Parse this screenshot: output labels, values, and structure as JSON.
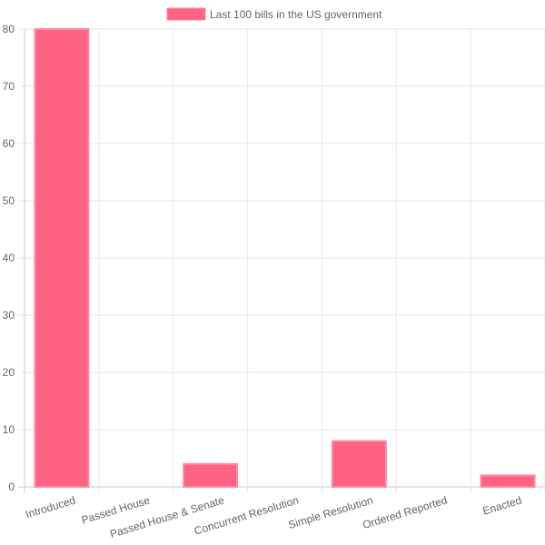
{
  "chart_data": {
    "type": "bar",
    "categories": [
      "Introduced",
      "Passed House",
      "Passed House & Senate",
      "Concurrent Resolution",
      "Simple Resolution",
      "Ordered Reported",
      "Enacted"
    ],
    "series": [
      {
        "name": "Last 100 bills in the US government",
        "values": [
          80,
          0,
          4,
          0,
          8,
          0,
          2
        ]
      }
    ],
    "ylim": [
      0,
      80
    ],
    "yticks": [
      0,
      10,
      20,
      30,
      40,
      50,
      60,
      70,
      80
    ],
    "grid": true,
    "legend_position": "top",
    "colors": {
      "bar_fill": "#ff6384",
      "bar_border": "#ff8aa3",
      "grid": "#e6e6e6",
      "axis": "#c8c8c8",
      "text": "#666666"
    }
  }
}
